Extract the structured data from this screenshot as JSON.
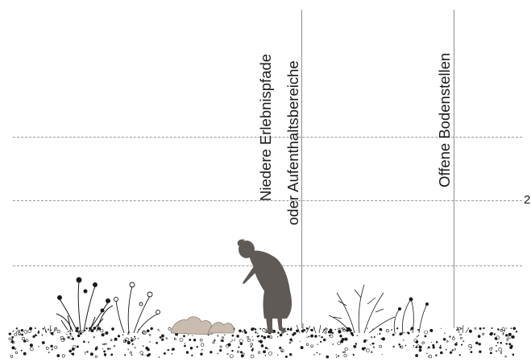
{
  "labels": {
    "pathways_line1": "Niedere Erlebnispfade",
    "pathways_line2": "oder Aufenthaltsbereiche",
    "bare_soil": "Offene Bodenstellen",
    "edge_text": "2"
  },
  "colors": {
    "ink": "#1a1a1a",
    "dash": "#9a9a9a",
    "figure": "#5f5a56",
    "plant_beige": "#c9bcae"
  },
  "icons": [
    "person-silhouette-icon",
    "wildflower-icon",
    "grass-tuft-icon",
    "shrub-icon",
    "gravel-ground-icon"
  ]
}
